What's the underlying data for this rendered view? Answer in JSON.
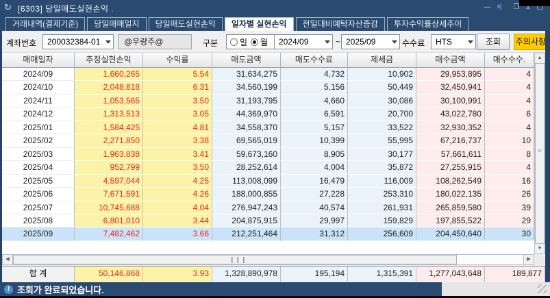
{
  "titlebar": {
    "refresh_glyph": "↻",
    "title": "[6303] 당일매도실현손익",
    "title_suffix": ".",
    "icons": [
      {
        "name": "minimize-icon",
        "glyph": "—",
        "blue": false
      },
      {
        "name": "dock-right-icon",
        "glyph": "⏵⎸",
        "blue": true
      },
      {
        "name": "restore-icon",
        "glyph": "❐",
        "blue": false
      },
      {
        "name": "pin-icon",
        "glyph": "⧗",
        "blue": true
      },
      {
        "name": "maximize-icon",
        "glyph": "▢",
        "blue": false
      }
    ]
  },
  "tabs": [
    {
      "label": "거래내역(결제기준)",
      "active": false
    },
    {
      "label": "당일매매일지",
      "active": false
    },
    {
      "label": "당일매도실현손익",
      "active": false
    },
    {
      "label": "일자별 실현손익",
      "active": true
    },
    {
      "label": "전일대비예탁자산증감",
      "active": false
    },
    {
      "label": "투자수익률상세추이",
      "active": false
    }
  ],
  "toolbar": {
    "account_label": "계좌번호",
    "account_number": "200032384-01",
    "account_name": "@우량주@",
    "type_label": "구분",
    "radio_day": "일",
    "radio_month": "월",
    "selected_radio": "월",
    "date_from": "2024/09",
    "range_separator": "~",
    "date_to": "2025/09",
    "fee_label": "수수료",
    "fee_type": "HTS",
    "query_button": "조회",
    "caution_button": "주의사항"
  },
  "table": {
    "headers": [
      "매매일자",
      "추정실현손익",
      "수익률",
      "매도금액",
      "매도수수료",
      "제세금",
      "매수금액",
      "매수수수."
    ],
    "col_keys": [
      "date",
      "pl",
      "rate",
      "sell",
      "sell_fee",
      "tax",
      "buy",
      "buy_fee"
    ],
    "selected_date": "2025/09",
    "rows": [
      {
        "date": "2024/09",
        "pl": "1,660,265",
        "rate": "5.54",
        "sell": "31,634,275",
        "sell_fee": "4,732",
        "tax": "10,902",
        "buy": "29,953,895",
        "buy_fee": "4"
      },
      {
        "date": "2024/10",
        "pl": "2,048,818",
        "rate": "6.31",
        "sell": "34,560,199",
        "sell_fee": "5,156",
        "tax": "50,449",
        "buy": "32,450,941",
        "buy_fee": "4"
      },
      {
        "date": "2024/11",
        "pl": "1,053,565",
        "rate": "3.50",
        "sell": "31,193,795",
        "sell_fee": "4,660",
        "tax": "30,086",
        "buy": "30,100,991",
        "buy_fee": "4"
      },
      {
        "date": "2024/12",
        "pl": "1,313,513",
        "rate": "3.05",
        "sell": "44,369,970",
        "sell_fee": "6,591",
        "tax": "20,700",
        "buy": "43,022,780",
        "buy_fee": "6"
      },
      {
        "date": "2025/01",
        "pl": "1,584,425",
        "rate": "4.81",
        "sell": "34,558,370",
        "sell_fee": "5,157",
        "tax": "33,522",
        "buy": "32,930,352",
        "buy_fee": "4"
      },
      {
        "date": "2025/02",
        "pl": "2,271,850",
        "rate": "3.38",
        "sell": "69,565,019",
        "sell_fee": "10,399",
        "tax": "55,995",
        "buy": "67,216,737",
        "buy_fee": "10"
      },
      {
        "date": "2025/03",
        "pl": "1,963,838",
        "rate": "3.41",
        "sell": "59,673,160",
        "sell_fee": "8,905",
        "tax": "30,177",
        "buy": "57,661,611",
        "buy_fee": "8"
      },
      {
        "date": "2025/04",
        "pl": "952,799",
        "rate": "3.50",
        "sell": "28,252,614",
        "sell_fee": "4,004",
        "tax": "35,872",
        "buy": "27,255,915",
        "buy_fee": "4"
      },
      {
        "date": "2025/05",
        "pl": "4,597,044",
        "rate": "4.25",
        "sell": "113,008,099",
        "sell_fee": "16,479",
        "tax": "116,009",
        "buy": "108,262,549",
        "buy_fee": "16"
      },
      {
        "date": "2025/06",
        "pl": "7,671,591",
        "rate": "4.26",
        "sell": "188,000,855",
        "sell_fee": "27,228",
        "tax": "253,310",
        "buy": "180,022,135",
        "buy_fee": "26"
      },
      {
        "date": "2025/07",
        "pl": "10,745,688",
        "rate": "4.04",
        "sell": "276,947,243",
        "sell_fee": "40,574",
        "tax": "261,931",
        "buy": "265,859,580",
        "buy_fee": "39"
      },
      {
        "date": "2025/08",
        "pl": "6,801,010",
        "rate": "3.44",
        "sell": "204,875,915",
        "sell_fee": "29,997",
        "tax": "159,829",
        "buy": "197,855,522",
        "buy_fee": "29"
      },
      {
        "date": "2025/09",
        "pl": "7,482,462",
        "rate": "3.66",
        "sell": "212,251,464",
        "sell_fee": "31,312",
        "tax": "256,609",
        "buy": "204,450,640",
        "buy_fee": "30"
      }
    ],
    "total": {
      "date": "합 계",
      "pl": "50,146,868",
      "rate": "3.93",
      "sell": "1,328,890,978",
      "sell_fee": "195,194",
      "tax": "1,315,391",
      "buy": "1,277,043,648",
      "buy_fee": "189,877"
    }
  },
  "statusbar": {
    "message": "조회가 완료되었습니다."
  },
  "colors": {
    "navy": "#2b4a70",
    "yellow_cell": "#fbf3a7",
    "blue_cell": "#eaf2fa",
    "pink_cell": "#fdeceb",
    "selected_row": "#cbe3f8",
    "red_text": "#e8251d",
    "caution_bg": "#ffcc00"
  }
}
